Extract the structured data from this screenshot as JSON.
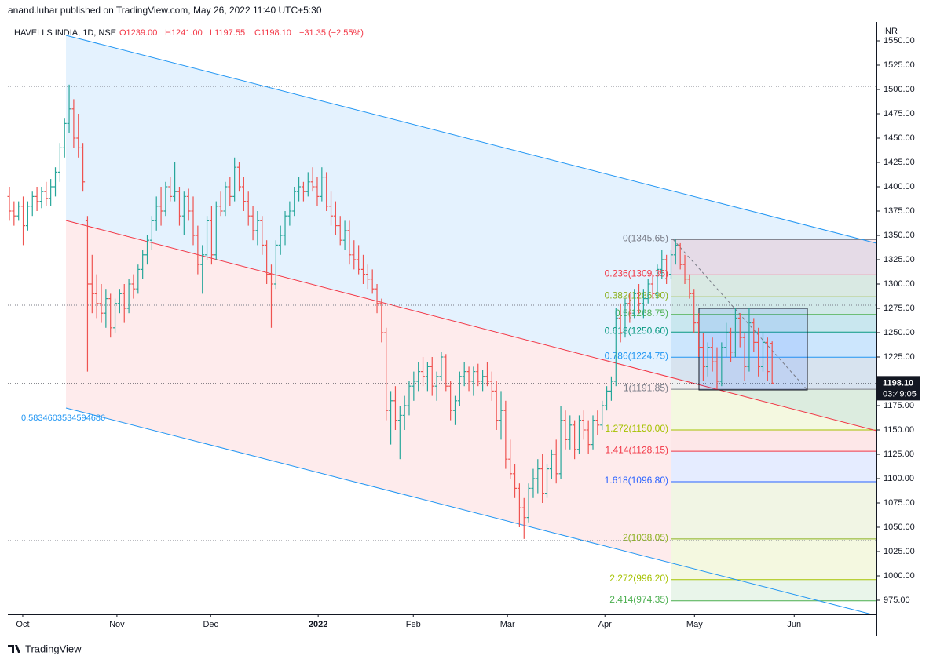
{
  "published": "anand.luhar published on TradingView.com, May 26, 2022 11:40 UTC+5:30",
  "footer": "TradingView",
  "chart_data": {
    "type": "ohlc",
    "legend": {
      "symbol": "HAVELLS INDIA, 1D, NSE",
      "open": "O1239.00",
      "high": "H1241.00",
      "low": "L1197.55",
      "close": "C1198.10",
      "change": "−31.35 (−2.55%)"
    },
    "currency": "INR",
    "up_color": "#26a69a",
    "down_color": "#ef5350",
    "open": [
      1390,
      1375,
      1370,
      1380,
      1360,
      1380,
      1390,
      1385,
      1395,
      1388,
      1400,
      1415,
      1440,
      1465,
      1480,
      1450,
      1440,
      1365,
      1300,
      1290,
      1280,
      1270,
      1285,
      1255,
      1280,
      1290,
      1275,
      1300,
      1295,
      1315,
      1330,
      1345,
      1365,
      1380,
      1375,
      1400,
      1390,
      1395,
      1370,
      1390,
      1375,
      1350,
      1320,
      1330,
      1365,
      1330,
      1380,
      1375,
      1400,
      1390,
      1420,
      1400,
      1385,
      1370,
      1355,
      1365,
      1340,
      1310,
      1300,
      1340,
      1350,
      1370,
      1375,
      1395,
      1400,
      1395,
      1405,
      1400,
      1390,
      1410,
      1380,
      1370,
      1360,
      1345,
      1355,
      1330,
      1325,
      1315,
      1310,
      1305,
      1295,
      1280,
      1250,
      1170,
      1180,
      1160,
      1165,
      1175,
      1195,
      1200,
      1210,
      1205,
      1215,
      1195,
      1205,
      1225,
      1195,
      1170,
      1180,
      1205,
      1210,
      1200,
      1210,
      1200,
      1205,
      1200,
      1190,
      1160,
      1170,
      1120,
      1105,
      1090,
      1070,
      1060,
      1090,
      1100,
      1110,
      1085,
      1110,
      1125,
      1105,
      1160,
      1140,
      1155,
      1130,
      1160,
      1150,
      1135,
      1160,
      1155,
      1175,
      1190,
      1200,
      1265,
      1250,
      1280,
      1270,
      1290,
      1280,
      1285,
      1300,
      1290,
      1315,
      1325,
      1310,
      1330,
      1340,
      1320,
      1305,
      1290,
      1260,
      1235,
      1215,
      1235,
      1220,
      1200,
      1235,
      1250,
      1230,
      1265,
      1245,
      1215,
      1260,
      1240,
      1215,
      1240,
      1239
    ],
    "high": [
      1400,
      1385,
      1385,
      1390,
      1385,
      1395,
      1400,
      1400,
      1405,
      1408,
      1420,
      1445,
      1470,
      1505,
      1490,
      1475,
      1445,
      1370,
      1330,
      1310,
      1300,
      1295,
      1290,
      1285,
      1295,
      1300,
      1305,
      1310,
      1320,
      1335,
      1350,
      1370,
      1390,
      1400,
      1405,
      1410,
      1425,
      1400,
      1395,
      1398,
      1390,
      1360,
      1340,
      1370,
      1380,
      1385,
      1395,
      1405,
      1410,
      1430,
      1425,
      1410,
      1395,
      1380,
      1375,
      1370,
      1345,
      1320,
      1345,
      1360,
      1375,
      1385,
      1400,
      1410,
      1405,
      1415,
      1420,
      1410,
      1420,
      1415,
      1395,
      1385,
      1370,
      1365,
      1365,
      1345,
      1340,
      1330,
      1320,
      1315,
      1300,
      1285,
      1255,
      1190,
      1195,
      1175,
      1185,
      1200,
      1210,
      1220,
      1225,
      1220,
      1225,
      1210,
      1230,
      1228,
      1200,
      1185,
      1210,
      1220,
      1215,
      1215,
      1218,
      1212,
      1220,
      1210,
      1200,
      1190,
      1180,
      1140,
      1115,
      1095,
      1080,
      1095,
      1110,
      1120,
      1125,
      1115,
      1130,
      1140,
      1175,
      1170,
      1165,
      1160,
      1165,
      1170,
      1160,
      1165,
      1170,
      1180,
      1195,
      1205,
      1275,
      1280,
      1285,
      1290,
      1295,
      1300,
      1295,
      1305,
      1310,
      1320,
      1335,
      1330,
      1335,
      1345.65,
      1342,
      1330,
      1310,
      1295,
      1270,
      1250,
      1240,
      1245,
      1235,
      1240,
      1260,
      1255,
      1275,
      1270,
      1250,
      1275,
      1265,
      1255,
      1250,
      1245,
      1241
    ],
    "low": [
      1365,
      1360,
      1365,
      1340,
      1355,
      1370,
      1375,
      1378,
      1380,
      1380,
      1390,
      1405,
      1430,
      1455,
      1440,
      1430,
      1395,
      1210,
      1270,
      1265,
      1260,
      1255,
      1245,
      1250,
      1270,
      1260,
      1270,
      1285,
      1290,
      1305,
      1320,
      1335,
      1355,
      1360,
      1370,
      1385,
      1385,
      1360,
      1350,
      1365,
      1340,
      1310,
      1290,
      1325,
      1320,
      1325,
      1370,
      1370,
      1380,
      1385,
      1395,
      1375,
      1360,
      1345,
      1340,
      1330,
      1300,
      1255,
      1295,
      1330,
      1340,
      1360,
      1370,
      1385,
      1385,
      1390,
      1395,
      1380,
      1385,
      1375,
      1360,
      1350,
      1340,
      1335,
      1320,
      1315,
      1310,
      1300,
      1295,
      1290,
      1270,
      1240,
      1160,
      1135,
      1150,
      1120,
      1150,
      1165,
      1180,
      1190,
      1195,
      1190,
      1185,
      1180,
      1200,
      1190,
      1160,
      1155,
      1175,
      1195,
      1190,
      1185,
      1195,
      1190,
      1195,
      1180,
      1150,
      1140,
      1110,
      1100,
      1080,
      1050,
      1038,
      1055,
      1080,
      1085,
      1075,
      1080,
      1100,
      1095,
      1100,
      1130,
      1130,
      1120,
      1125,
      1140,
      1125,
      1130,
      1145,
      1150,
      1170,
      1180,
      1195,
      1240,
      1245,
      1260,
      1265,
      1270,
      1265,
      1280,
      1285,
      1285,
      1305,
      1300,
      1305,
      1320,
      1315,
      1300,
      1285,
      1250,
      1225,
      1200,
      1205,
      1210,
      1191.85,
      1195,
      1225,
      1220,
      1225,
      1235,
      1200,
      1210,
      1230,
      1205,
      1210,
      1200,
      1197.55
    ],
    "close": [
      1375,
      1370,
      1380,
      1360,
      1380,
      1390,
      1385,
      1395,
      1388,
      1400,
      1415,
      1440,
      1465,
      1480,
      1450,
      1440,
      1405,
      1300,
      1290,
      1280,
      1270,
      1285,
      1255,
      1280,
      1290,
      1275,
      1300,
      1295,
      1315,
      1330,
      1345,
      1365,
      1380,
      1375,
      1400,
      1390,
      1395,
      1370,
      1390,
      1375,
      1350,
      1320,
      1330,
      1365,
      1330,
      1380,
      1375,
      1400,
      1390,
      1420,
      1400,
      1385,
      1370,
      1355,
      1365,
      1340,
      1310,
      1300,
      1340,
      1350,
      1370,
      1375,
      1395,
      1400,
      1395,
      1405,
      1400,
      1390,
      1410,
      1380,
      1370,
      1360,
      1345,
      1355,
      1330,
      1325,
      1315,
      1310,
      1305,
      1295,
      1280,
      1250,
      1170,
      1180,
      1160,
      1165,
      1175,
      1195,
      1200,
      1210,
      1205,
      1215,
      1195,
      1205,
      1225,
      1195,
      1170,
      1180,
      1205,
      1210,
      1200,
      1210,
      1200,
      1205,
      1200,
      1190,
      1160,
      1170,
      1120,
      1105,
      1090,
      1070,
      1060,
      1090,
      1100,
      1110,
      1085,
      1110,
      1125,
      1105,
      1160,
      1140,
      1155,
      1130,
      1160,
      1150,
      1135,
      1160,
      1155,
      1175,
      1190,
      1200,
      1265,
      1250,
      1280,
      1270,
      1290,
      1280,
      1285,
      1300,
      1290,
      1315,
      1325,
      1310,
      1330,
      1340,
      1320,
      1305,
      1290,
      1260,
      1235,
      1215,
      1235,
      1220,
      1200,
      1235,
      1250,
      1230,
      1265,
      1245,
      1215,
      1260,
      1240,
      1215,
      1240,
      1210,
      1198.1
    ],
    "xlim": [
      -0.34,
      188.7
    ],
    "xticks": [
      {
        "value": 2.9,
        "label": "Oct"
      },
      {
        "value": 23.4,
        "label": "Nov"
      },
      {
        "value": 43.8,
        "label": "Dec"
      },
      {
        "value": 67.2,
        "label": "2022"
      },
      {
        "value": 87.9,
        "label": "Feb"
      },
      {
        "value": 108.4,
        "label": "Mar"
      },
      {
        "value": 129.6,
        "label": "Apr"
      },
      {
        "value": 149.1,
        "label": "May"
      },
      {
        "value": 170.8,
        "label": "Jun"
      }
    ],
    "ylim": [
      960.48,
      1569.35
    ],
    "yticks": [
      {
        "value": 975,
        "label": "975.00"
      },
      {
        "value": 1000,
        "label": "1000.00"
      },
      {
        "value": 1025,
        "label": "1025.00"
      },
      {
        "value": 1050,
        "label": "1050.00"
      },
      {
        "value": 1075,
        "label": "1075.00"
      },
      {
        "value": 1100,
        "label": "1100.00"
      },
      {
        "value": 1125,
        "label": "1125.00"
      },
      {
        "value": 1150,
        "label": "1150.00"
      },
      {
        "value": 1175,
        "label": "1175.00"
      },
      {
        "value": 1225,
        "label": "1225.00"
      },
      {
        "value": 1250,
        "label": "1250.00"
      },
      {
        "value": 1275,
        "label": "1275.00"
      },
      {
        "value": 1300,
        "label": "1300.00"
      },
      {
        "value": 1325,
        "label": "1325.00"
      },
      {
        "value": 1350,
        "label": "1350.00"
      },
      {
        "value": 1375,
        "label": "1375.00"
      },
      {
        "value": 1400,
        "label": "1400.00"
      },
      {
        "value": 1425,
        "label": "1425.00"
      },
      {
        "value": 1450,
        "label": "1450.00"
      },
      {
        "value": 1475,
        "label": "1475.00"
      },
      {
        "value": 1500,
        "label": "1500.00"
      },
      {
        "value": 1525,
        "label": "1525.00"
      },
      {
        "value": 1550,
        "label": "1550.00"
      }
    ],
    "price_tag": {
      "value": 1198.1,
      "label": "1198.10",
      "countdown": "03:49:05"
    },
    "channel_label": "0.5834603534594686",
    "fib_levels": [
      {
        "label": "0(1345.65)",
        "value": 1345.65,
        "color": "#787b86"
      },
      {
        "label": "0.236(1309.35)",
        "value": 1309.35,
        "color": "#f23645"
      },
      {
        "label": "0.382(1286.90)",
        "value": 1286.9,
        "color": "#8bb01e"
      },
      {
        "label": "0.5(1268.75)",
        "value": 1268.75,
        "color": "#4caf50"
      },
      {
        "label": "0.618(1250.60)",
        "value": 1250.6,
        "color": "#089981"
      },
      {
        "label": "0.786(1224.75)",
        "value": 1224.75,
        "color": "#2196f3"
      },
      {
        "label": "1(1191.85)",
        "value": 1191.85,
        "color": "#787b86"
      },
      {
        "label": "1.272(1150.00)",
        "value": 1150.0,
        "color": "#a5c200"
      },
      {
        "label": "1.414(1128.15)",
        "value": 1128.15,
        "color": "#f23645"
      },
      {
        "label": "1.618(1096.80)",
        "value": 1096.8,
        "color": "#2962ff"
      },
      {
        "label": "2(1038.05)",
        "value": 1038.05,
        "color": "#8bb01e"
      },
      {
        "label": "2.272(996.20)",
        "value": 996.2,
        "color": "#a5c200"
      },
      {
        "label": "2.414(974.35)",
        "value": 974.35,
        "color": "#4caf50"
      }
    ]
  }
}
